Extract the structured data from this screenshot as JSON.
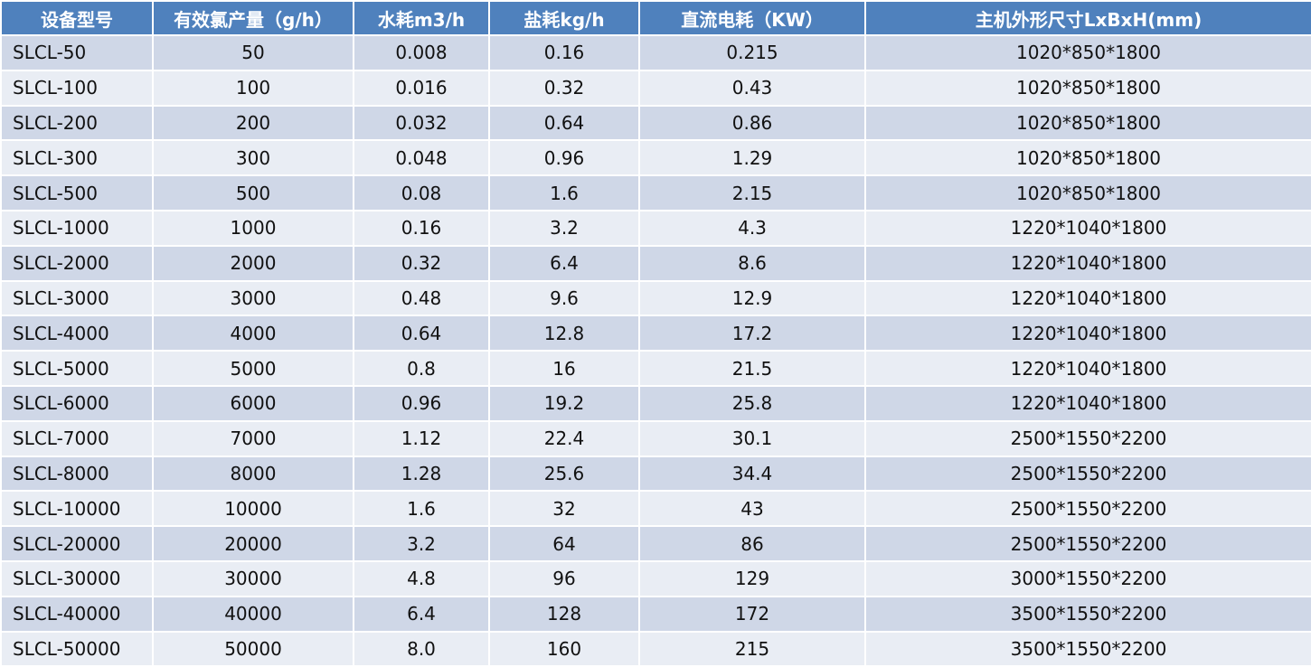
{
  "table": {
    "headers": [
      "设备型号",
      "有效氯产量（g/h）",
      "水耗m3/h",
      "盐耗kg/h",
      "直流电耗（KW）",
      "主机外形尺寸LxBxH(mm)"
    ],
    "rows": [
      [
        "SLCL-50",
        "50",
        "0.008",
        "0.16",
        "0.215",
        "1020*850*1800"
      ],
      [
        "SLCL-100",
        "100",
        "0.016",
        "0.32",
        "0.43",
        "1020*850*1800"
      ],
      [
        "SLCL-200",
        "200",
        "0.032",
        "0.64",
        "0.86",
        "1020*850*1800"
      ],
      [
        "SLCL-300",
        "300",
        "0.048",
        "0.96",
        "1.29",
        "1020*850*1800"
      ],
      [
        "SLCL-500",
        "500",
        "0.08",
        "1.6",
        "2.15",
        "1020*850*1800"
      ],
      [
        "SLCL-1000",
        "1000",
        "0.16",
        "3.2",
        "4.3",
        "1220*1040*1800"
      ],
      [
        "SLCL-2000",
        "2000",
        "0.32",
        "6.4",
        "8.6",
        "1220*1040*1800"
      ],
      [
        "SLCL-3000",
        "3000",
        "0.48",
        "9.6",
        "12.9",
        "1220*1040*1800"
      ],
      [
        "SLCL-4000",
        "4000",
        "0.64",
        "12.8",
        "17.2",
        "1220*1040*1800"
      ],
      [
        "SLCL-5000",
        "5000",
        "0.8",
        "16",
        "21.5",
        "1220*1040*1800"
      ],
      [
        "SLCL-6000",
        "6000",
        "0.96",
        "19.2",
        "25.8",
        "1220*1040*1800"
      ],
      [
        "SLCL-7000",
        "7000",
        "1.12",
        "22.4",
        "30.1",
        "2500*1550*2200"
      ],
      [
        "SLCL-8000",
        "8000",
        "1.28",
        "25.6",
        "34.4",
        "2500*1550*2200"
      ],
      [
        "SLCL-10000",
        "10000",
        "1.6",
        "32",
        "43",
        "2500*1550*2200"
      ],
      [
        "SLCL-20000",
        "20000",
        "3.2",
        "64",
        "86",
        "2500*1550*2200"
      ],
      [
        "SLCL-30000",
        "30000",
        "4.8",
        "96",
        "129",
        "3000*1550*2200"
      ],
      [
        "SLCL-40000",
        "40000",
        "6.4",
        "128",
        "172",
        "3500*1550*2200"
      ],
      [
        "SLCL-50000",
        "50000",
        "8.0",
        "160",
        "215",
        "3500*1550*2200"
      ]
    ]
  }
}
